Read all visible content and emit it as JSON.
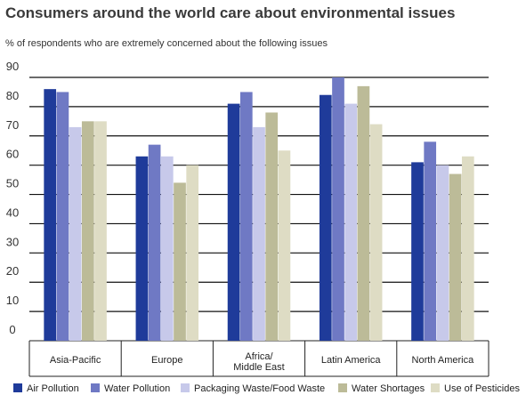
{
  "chart_data": {
    "type": "bar",
    "title": "Consumers around the world care about environmental issues",
    "subtitle": "% of respondents who are extremely concerned about the following issues",
    "xlabel": "",
    "ylabel": "",
    "ylim": [
      0,
      90
    ],
    "yticks": [
      "0",
      "10",
      "20",
      "30",
      "40",
      "50",
      "60",
      "70",
      "80",
      "90"
    ],
    "categories": [
      [
        "Asia-Pacific"
      ],
      [
        "Europe"
      ],
      [
        "Africa/",
        "Middle East"
      ],
      [
        "Latin America"
      ],
      [
        "North America"
      ]
    ],
    "series": [
      {
        "name": "Air Pollution",
        "color": "#1f3b9a",
        "values": [
          86,
          63,
          81,
          84,
          61
        ]
      },
      {
        "name": "Water Pollution",
        "color": "#6f79c4",
        "values": [
          85,
          67,
          85,
          90,
          68
        ]
      },
      {
        "name": "Packaging Waste/Food Waste",
        "color": "#c7c9ea",
        "values": [
          73,
          63,
          73,
          81,
          60
        ]
      },
      {
        "name": "Water Shortages",
        "color": "#bcbb98",
        "values": [
          75,
          54,
          78,
          87,
          57
        ]
      },
      {
        "name": "Use of Pesticides",
        "color": "#dedcc4",
        "values": [
          75,
          60,
          65,
          74,
          63
        ]
      }
    ],
    "grid": true,
    "legend_position": "bottom"
  }
}
